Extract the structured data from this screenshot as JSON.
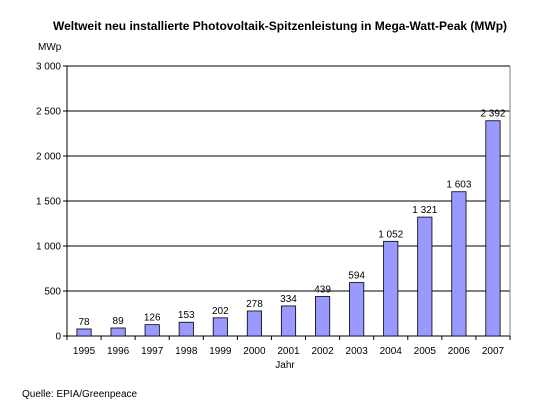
{
  "chart_data": {
    "type": "bar",
    "title": "Weltweit neu installierte Photovoltaik-Spitzenleistung in Mega-Watt-Peak (MWp)",
    "ylabel": "MWp",
    "xlabel": "Jahr",
    "categories": [
      "1995",
      "1996",
      "1997",
      "1998",
      "1999",
      "2000",
      "2001",
      "2002",
      "2003",
      "2004",
      "2005",
      "2006",
      "2007"
    ],
    "values": [
      78,
      89,
      126,
      153,
      202,
      278,
      334,
      439,
      594,
      1052,
      1321,
      1603,
      2392
    ],
    "value_labels": [
      "78",
      "89",
      "126",
      "153",
      "202",
      "278",
      "334",
      "439",
      "594",
      "1 052",
      "1 321",
      "1 603",
      "2 392"
    ],
    "ylim": [
      0,
      3000
    ],
    "yticks": [
      0,
      500,
      1000,
      1500,
      2000,
      2500,
      3000
    ],
    "ytick_labels": [
      "0",
      "500",
      "1 000",
      "1 500",
      "2 000",
      "2 500",
      "3 000"
    ],
    "grid": true,
    "colors": {
      "bar_fill": "#9999ff",
      "bar_edge": "#000000",
      "grid": "#000000"
    }
  },
  "source": "Quelle: EPIA/Greenpeace"
}
